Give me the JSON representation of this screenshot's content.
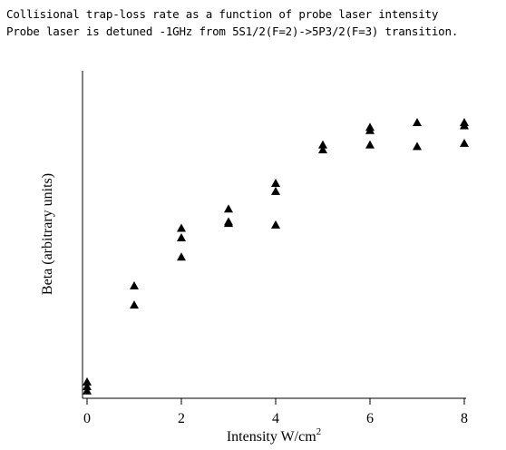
{
  "chart_data": {
    "type": "scatter",
    "title_lines": [
      "Collisional trap-loss rate as a function of probe laser intensity",
      "Probe laser is detuned -1GHz from 5S1/2(F=2)->5P3/2(F=3) transition."
    ],
    "xlabel": "Intensity W/cm",
    "xlabel_superscript": "2",
    "ylabel": "Beta (arbitrary units)",
    "xlim": [
      0,
      8
    ],
    "xticks": [
      0,
      2,
      4,
      6,
      8
    ],
    "xtick_labels": [
      "0",
      "2",
      "4",
      "6",
      "8"
    ],
    "ylim": [
      0,
      1
    ],
    "grid": false,
    "marker": "triangle",
    "marker_color": "#000000",
    "points": [
      {
        "x": 0,
        "y": 0.04
      },
      {
        "x": 0,
        "y": 0.025
      },
      {
        "x": 0,
        "y": 0.012
      },
      {
        "x": 1,
        "y": 0.34
      },
      {
        "x": 1,
        "y": 0.28
      },
      {
        "x": 2,
        "y": 0.52
      },
      {
        "x": 2,
        "y": 0.49
      },
      {
        "x": 2,
        "y": 0.43
      },
      {
        "x": 3,
        "y": 0.58
      },
      {
        "x": 3,
        "y": 0.54
      },
      {
        "x": 3,
        "y": 0.535
      },
      {
        "x": 4,
        "y": 0.66
      },
      {
        "x": 4,
        "y": 0.635
      },
      {
        "x": 4,
        "y": 0.53
      },
      {
        "x": 5,
        "y": 0.78
      },
      {
        "x": 5,
        "y": 0.765
      },
      {
        "x": 6,
        "y": 0.835
      },
      {
        "x": 6,
        "y": 0.825
      },
      {
        "x": 6,
        "y": 0.78
      },
      {
        "x": 7,
        "y": 0.85
      },
      {
        "x": 7,
        "y": 0.775
      },
      {
        "x": 8,
        "y": 0.85
      },
      {
        "x": 8,
        "y": 0.84
      },
      {
        "x": 8,
        "y": 0.785
      }
    ]
  }
}
